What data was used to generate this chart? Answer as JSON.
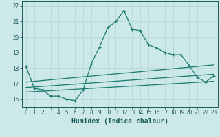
{
  "xlabel": "Humidex (Indice chaleur)",
  "bg_color": "#cce8e8",
  "plot_bg_color": "#cce8e8",
  "grid_color": "#b8d8d8",
  "line_color": "#1a7a6e",
  "tick_color": "#1a5a5a",
  "xlim": [
    -0.5,
    23.5
  ],
  "ylim": [
    15.5,
    22.3
  ],
  "yticks": [
    16,
    17,
    18,
    19,
    20,
    21,
    22
  ],
  "xticks": [
    0,
    1,
    2,
    3,
    4,
    5,
    6,
    7,
    8,
    9,
    10,
    11,
    12,
    13,
    14,
    15,
    16,
    17,
    18,
    19,
    20,
    21,
    22,
    23
  ],
  "series1_x": [
    0,
    1,
    2,
    3,
    4,
    5,
    6,
    7,
    8,
    9,
    10,
    11,
    12,
    13,
    14,
    15,
    16,
    17,
    18,
    19,
    20,
    21,
    22,
    23
  ],
  "series1_y": [
    18.1,
    16.7,
    16.6,
    16.2,
    16.2,
    16.0,
    15.9,
    16.6,
    18.3,
    19.35,
    20.6,
    21.0,
    21.7,
    20.5,
    20.4,
    19.5,
    19.3,
    19.0,
    18.85,
    18.85,
    18.15,
    17.4,
    17.1,
    17.5
  ],
  "series2_x": [
    0,
    23
  ],
  "series2_y": [
    17.1,
    18.2
  ],
  "series3_x": [
    0,
    23
  ],
  "series3_y": [
    16.75,
    17.6
  ],
  "series4_x": [
    0,
    23
  ],
  "series4_y": [
    16.45,
    17.15
  ]
}
